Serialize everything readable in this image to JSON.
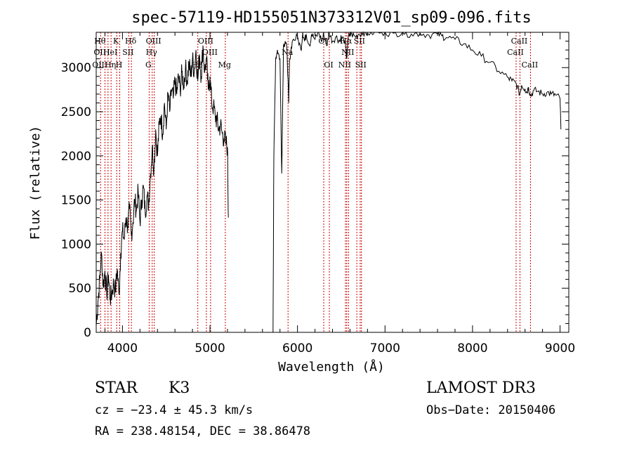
{
  "chart_data": {
    "type": "line",
    "title": "spec-57119-HD155051N373312V01_sp09-096.fits",
    "xlabel": "Wavelength (Å)",
    "ylabel": "Flux (relative)",
    "xlim": [
      3700,
      9100
    ],
    "ylim": [
      0,
      3400
    ],
    "x_ticks": [
      4000,
      5000,
      6000,
      7000,
      8000,
      9000
    ],
    "y_ticks": [
      0,
      500,
      1000,
      1500,
      2000,
      2500,
      3000
    ],
    "grid": false,
    "series": [
      {
        "segments": [
          [
            [
              3700,
              80
            ],
            [
              3720,
              350
            ],
            [
              3740,
              600
            ],
            [
              3760,
              900
            ],
            [
              3780,
              520
            ],
            [
              3800,
              700
            ],
            [
              3820,
              420
            ],
            [
              3840,
              650
            ],
            [
              3860,
              380
            ],
            [
              3880,
              450
            ],
            [
              3900,
              560
            ],
            [
              3920,
              470
            ],
            [
              3940,
              720
            ],
            [
              3960,
              430
            ],
            [
              3980,
              900
            ],
            [
              4000,
              1150
            ],
            [
              4020,
              1050
            ],
            [
              4040,
              1300
            ],
            [
              4060,
              1200
            ],
            [
              4080,
              1400
            ],
            [
              4100,
              1100
            ],
            [
              4120,
              1250
            ],
            [
              4140,
              1500
            ],
            [
              4160,
              1380
            ],
            [
              4180,
              1600
            ],
            [
              4200,
              1250
            ],
            [
              4220,
              1500
            ],
            [
              4240,
              1650
            ],
            [
              4260,
              1350
            ],
            [
              4280,
              1550
            ],
            [
              4300,
              1450
            ],
            [
              4320,
              1800
            ],
            [
              4340,
              2100
            ],
            [
              4360,
              1850
            ],
            [
              4380,
              2300
            ],
            [
              4400,
              2000
            ],
            [
              4420,
              2350
            ],
            [
              4440,
              2450
            ],
            [
              4460,
              2250
            ],
            [
              4480,
              2600
            ],
            [
              4500,
              2300
            ],
            [
              4520,
              2700
            ],
            [
              4540,
              2500
            ],
            [
              4560,
              2750
            ],
            [
              4580,
              2650
            ],
            [
              4600,
              2850
            ],
            [
              4620,
              2700
            ],
            [
              4640,
              2900
            ],
            [
              4660,
              2750
            ],
            [
              4680,
              2950
            ],
            [
              4700,
              2800
            ],
            [
              4720,
              3000
            ],
            [
              4740,
              2850
            ],
            [
              4760,
              3050
            ],
            [
              4780,
              2900
            ],
            [
              4800,
              3100
            ],
            [
              4820,
              2950
            ],
            [
              4840,
              3200
            ],
            [
              4860,
              2850
            ],
            [
              4880,
              3150
            ],
            [
              4900,
              2900
            ],
            [
              4920,
              3250
            ],
            [
              4940,
              2950
            ],
            [
              4960,
              3100
            ],
            [
              4980,
              2750
            ],
            [
              5000,
              2900
            ],
            [
              5020,
              2600
            ],
            [
              5040,
              2550
            ],
            [
              5060,
              2450
            ],
            [
              5080,
              2400
            ],
            [
              5100,
              2300
            ],
            [
              5120,
              2350
            ],
            [
              5140,
              2250
            ],
            [
              5160,
              2200
            ],
            [
              5180,
              2150
            ],
            [
              5200,
              2100
            ],
            [
              5210,
              1300
            ]
          ],
          [
            [
              5720,
              0
            ],
            [
              5730,
              2000
            ],
            [
              5750,
              3100
            ],
            [
              5770,
              3200
            ],
            [
              5800,
              3100
            ],
            [
              5820,
              1800
            ],
            [
              5840,
              3250
            ],
            [
              5860,
              3300
            ],
            [
              5880,
              3200
            ],
            [
              5900,
              2600
            ],
            [
              5910,
              3100
            ],
            [
              5940,
              3300
            ],
            [
              6000,
              3350
            ],
            [
              6040,
              3200
            ],
            [
              6060,
              3400
            ],
            [
              6080,
              3300
            ],
            [
              6100,
              3380
            ],
            [
              6140,
              3250
            ],
            [
              6160,
              3380
            ],
            [
              6200,
              3320
            ],
            [
              6240,
              3400
            ],
            [
              6280,
              3300
            ],
            [
              6300,
              3380
            ],
            [
              6340,
              3250
            ],
            [
              6360,
              3400
            ],
            [
              6400,
              3300
            ],
            [
              6440,
              3350
            ],
            [
              6480,
              3300
            ],
            [
              6500,
              3350
            ],
            [
              6540,
              3300
            ],
            [
              6563,
              3100
            ],
            [
              6580,
              3350
            ],
            [
              6620,
              3380
            ],
            [
              6660,
              3350
            ],
            [
              6700,
              3380
            ],
            [
              6750,
              3400
            ],
            [
              6800,
              3390
            ],
            [
              6900,
              3400
            ],
            [
              7000,
              3400
            ],
            [
              7100,
              3390
            ],
            [
              7200,
              3400
            ],
            [
              7300,
              3380
            ],
            [
              7400,
              3390
            ],
            [
              7500,
              3370
            ],
            [
              7600,
              3380
            ],
            [
              7650,
              3360
            ],
            [
              7700,
              3340
            ],
            [
              7800,
              3320
            ],
            [
              7900,
              3270
            ],
            [
              8000,
              3200
            ],
            [
              8100,
              3130
            ],
            [
              8200,
              3060
            ],
            [
              8300,
              2960
            ],
            [
              8400,
              2890
            ],
            [
              8450,
              2850
            ],
            [
              8500,
              2820
            ],
            [
              8540,
              2700
            ],
            [
              8560,
              2800
            ],
            [
              8600,
              2760
            ],
            [
              8620,
              2720
            ],
            [
              8640,
              2780
            ],
            [
              8662,
              2680
            ],
            [
              8700,
              2740
            ],
            [
              8750,
              2730
            ],
            [
              8800,
              2700
            ],
            [
              8850,
              2720
            ],
            [
              8900,
              2700
            ],
            [
              8950,
              2690
            ],
            [
              9000,
              2650
            ],
            [
              9010,
              2300
            ]
          ]
        ]
      }
    ],
    "lines": [
      {
        "x": 3750,
        "labels": [
          "Hθ",
          "OII",
          "OIII"
        ]
      },
      {
        "x": 3800,
        "labels": [
          "",
          "",
          ""
        ]
      },
      {
        "x": 3835,
        "labels": [
          "",
          "",
          ""
        ]
      },
      {
        "x": 3870,
        "labels": [
          "",
          "HeI",
          "Hη"
        ]
      },
      {
        "x": 3934,
        "labels": [
          "K",
          "",
          ""
        ]
      },
      {
        "x": 3969,
        "labels": [
          "",
          "",
          "H"
        ]
      },
      {
        "x": 4072,
        "labels": [
          "",
          "SII",
          ""
        ]
      },
      {
        "x": 4102,
        "labels": [
          "Hδ",
          "",
          ""
        ]
      },
      {
        "x": 4305,
        "labels": [
          "",
          "",
          "G"
        ]
      },
      {
        "x": 4340,
        "labels": [
          "",
          "Hγ",
          ""
        ]
      },
      {
        "x": 4363,
        "labels": [
          "OIII",
          "",
          ""
        ]
      },
      {
        "x": 4861,
        "labels": [
          "",
          "",
          "Hβ"
        ]
      },
      {
        "x": 4959,
        "labels": [
          "OIII",
          "",
          ""
        ]
      },
      {
        "x": 5007,
        "labels": [
          "",
          "OIII",
          ""
        ]
      },
      {
        "x": 5175,
        "labels": [
          "",
          "",
          "Mg"
        ]
      },
      {
        "x": 5892,
        "labels": [
          "",
          "Na",
          ""
        ]
      },
      {
        "x": 6300,
        "labels": [
          "OI",
          "",
          ""
        ]
      },
      {
        "x": 6364,
        "labels": [
          "",
          "",
          "OI"
        ]
      },
      {
        "x": 6548,
        "labels": [
          "",
          "",
          "NII"
        ]
      },
      {
        "x": 6563,
        "labels": [
          "Hα",
          "",
          ""
        ]
      },
      {
        "x": 6583,
        "labels": [
          "",
          "NII",
          ""
        ]
      },
      {
        "x": 6678,
        "labels": [
          "",
          "",
          ""
        ]
      },
      {
        "x": 6716,
        "labels": [
          "SII",
          "",
          ""
        ]
      },
      {
        "x": 6731,
        "labels": [
          "",
          "",
          "SII"
        ]
      },
      {
        "x": 8498,
        "labels": [
          "",
          "CaII",
          ""
        ]
      },
      {
        "x": 8542,
        "labels": [
          "CaII",
          "",
          ""
        ]
      },
      {
        "x": 8662,
        "labels": [
          "",
          "",
          "CaII"
        ]
      }
    ]
  },
  "info": {
    "class": "STAR",
    "subclass": "K3",
    "survey": "LAMOST DR3",
    "cz": "cz = −23.4 ± 45.3 km/s",
    "obs_date": "Obs−Date: 20150406",
    "coords": "RA = 238.48154, DEC =  38.86478"
  }
}
